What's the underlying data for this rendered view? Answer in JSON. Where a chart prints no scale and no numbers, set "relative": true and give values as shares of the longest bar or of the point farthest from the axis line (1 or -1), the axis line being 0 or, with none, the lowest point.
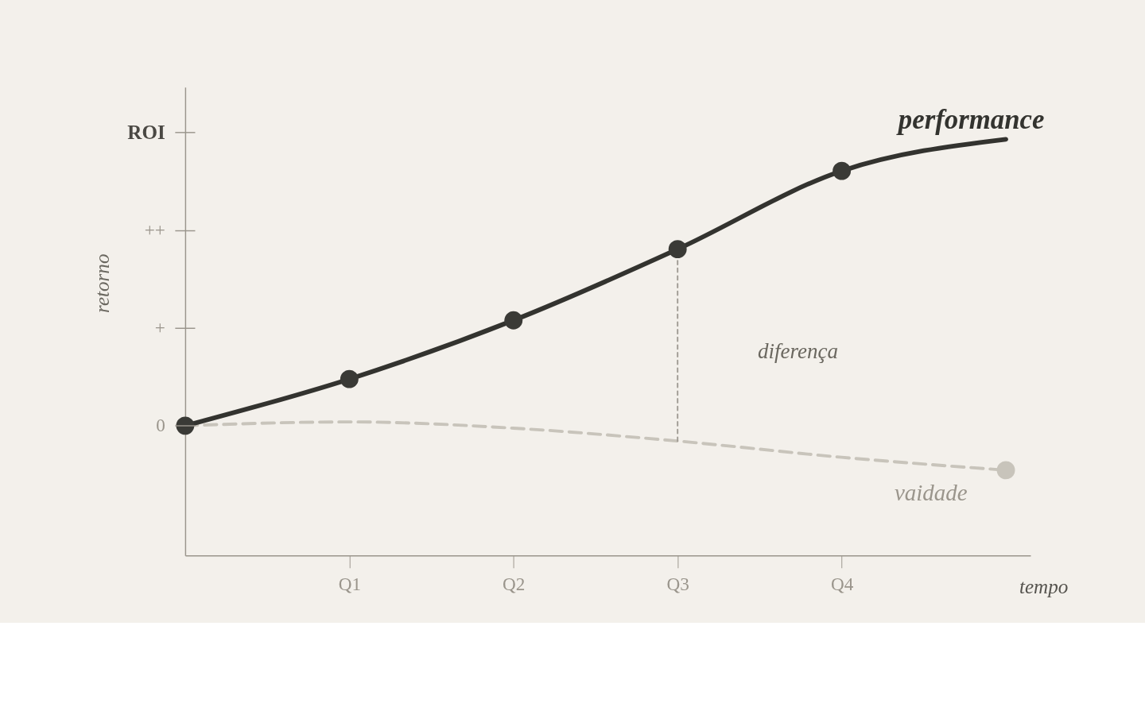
{
  "chart_data": {
    "type": "line",
    "relative": true,
    "xlabel": "tempo",
    "ylabel": "retorno",
    "categories": [
      null,
      "Q1",
      "Q2",
      "Q3",
      "Q4",
      null
    ],
    "grid": false,
    "series": [
      {
        "name": "vaidade",
        "line_style": "dashed",
        "color": "#c8c4bb",
        "values": [
          0.312,
          0.321,
          0.306,
          0.275,
          0.236,
          0.205
        ]
      },
      {
        "type": "scatter",
        "color": "#c8c4bb",
        "values": [
          null,
          null,
          null,
          null,
          null,
          0.205
        ]
      },
      {
        "line_style": "dotted",
        "color": "#a09c94",
        "x": [
          "Q3",
          "Q3"
        ],
        "values": [
          0.275,
          0.736
        ]
      },
      {
        "name": "performance",
        "line_style": "solid",
        "color": "#33332f",
        "values": [
          0.312,
          0.424,
          0.565,
          0.736,
          0.924,
          1
        ]
      },
      {
        "type": "scatter",
        "color": "#3a3a36",
        "values": [
          0.312,
          0.424,
          0.565,
          0.736,
          0.924,
          null
        ]
      }
    ],
    "annotations": [
      "0",
      "+",
      "++",
      "ROI",
      "diferença"
    ]
  }
}
